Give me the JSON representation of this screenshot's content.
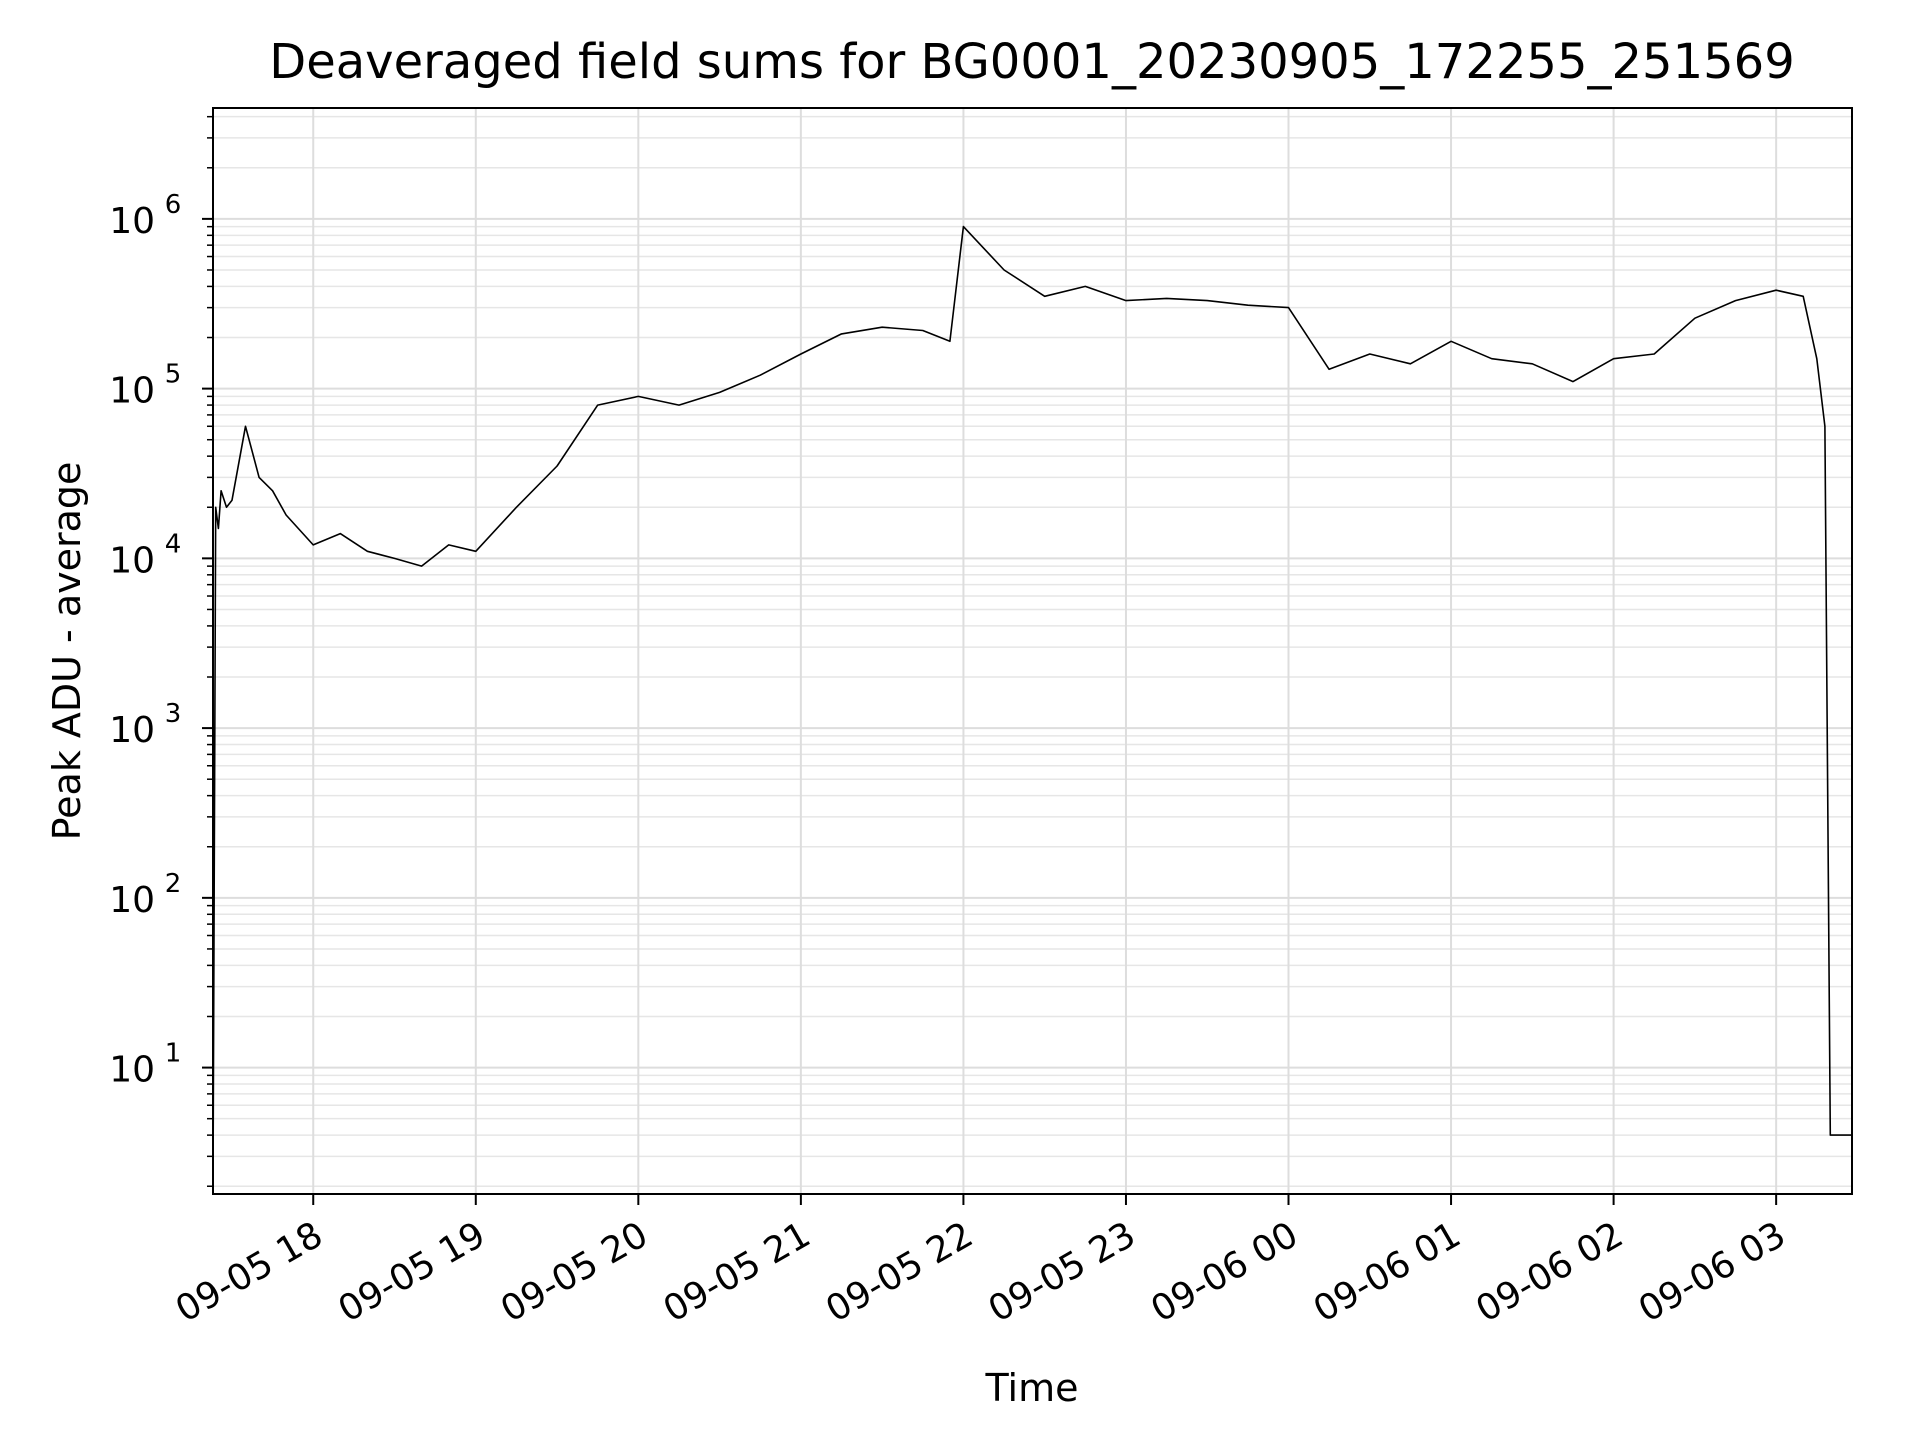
{
  "chart_data": {
    "type": "line",
    "title": "Deaveraged field sums for BG0001_20230905_172255_251569",
    "xlabel": "Time",
    "ylabel": "Peak ADU - average",
    "yscale": "log",
    "ylim": [
      1.8,
      4500000
    ],
    "xlim": [
      "2023-09-05 17:23",
      "2023-09-06 03:28"
    ],
    "grid": "on (major and minor)",
    "line_color": "#000000",
    "x_ticks": [
      "09-05 18",
      "09-05 19",
      "09-05 20",
      "09-05 21",
      "09-05 22",
      "09-05 23",
      "09-06 00",
      "09-06 01",
      "09-06 02",
      "09-06 03"
    ],
    "y_ticks": [
      {
        "base": "10",
        "exp": "1"
      },
      {
        "base": "10",
        "exp": "2"
      },
      {
        "base": "10",
        "exp": "3"
      },
      {
        "base": "10",
        "exp": "4"
      },
      {
        "base": "10",
        "exp": "5"
      },
      {
        "base": "10",
        "exp": "6"
      }
    ],
    "series": [
      {
        "x": [
          "2023-09-05 17:23",
          "2023-09-05 17:24",
          "2023-09-05 17:25",
          "2023-09-05 17:26",
          "2023-09-05 17:28",
          "2023-09-05 17:30",
          "2023-09-05 17:35",
          "2023-09-05 17:40",
          "2023-09-05 17:45",
          "2023-09-05 17:50",
          "2023-09-05 18:00",
          "2023-09-05 18:10",
          "2023-09-05 18:20",
          "2023-09-05 18:30",
          "2023-09-05 18:40",
          "2023-09-05 18:50",
          "2023-09-05 19:00",
          "2023-09-05 19:15",
          "2023-09-05 19:30",
          "2023-09-05 19:45",
          "2023-09-05 20:00",
          "2023-09-05 20:15",
          "2023-09-05 20:30",
          "2023-09-05 20:45",
          "2023-09-05 21:00",
          "2023-09-05 21:15",
          "2023-09-05 21:30",
          "2023-09-05 21:45",
          "2023-09-05 21:55",
          "2023-09-05 22:00",
          "2023-09-05 22:15",
          "2023-09-05 22:30",
          "2023-09-05 22:45",
          "2023-09-05 23:00",
          "2023-09-05 23:15",
          "2023-09-05 23:30",
          "2023-09-05 23:45",
          "2023-09-06 00:00",
          "2023-09-06 00:15",
          "2023-09-06 00:30",
          "2023-09-06 00:45",
          "2023-09-06 01:00",
          "2023-09-06 01:15",
          "2023-09-06 01:30",
          "2023-09-06 01:45",
          "2023-09-06 02:00",
          "2023-09-06 02:15",
          "2023-09-06 02:30",
          "2023-09-06 02:45",
          "2023-09-06 03:00",
          "2023-09-06 03:10",
          "2023-09-06 03:15",
          "2023-09-06 03:18",
          "2023-09-06 03:20",
          "2023-09-06 03:28"
        ],
        "values": [
          2,
          20000,
          15000,
          25000,
          20000,
          22000,
          60000,
          30000,
          25000,
          18000,
          12000,
          14000,
          11000,
          10000,
          9000,
          12000,
          11000,
          20000,
          35000,
          80000,
          90000,
          80000,
          95000,
          120000,
          160000,
          210000,
          230000,
          220000,
          190000,
          900000,
          500000,
          350000,
          400000,
          330000,
          340000,
          330000,
          310000,
          300000,
          130000,
          160000,
          140000,
          190000,
          150000,
          140000,
          110000,
          150000,
          160000,
          260000,
          330000,
          380000,
          350000,
          150000,
          60000,
          4,
          4
        ]
      }
    ]
  }
}
